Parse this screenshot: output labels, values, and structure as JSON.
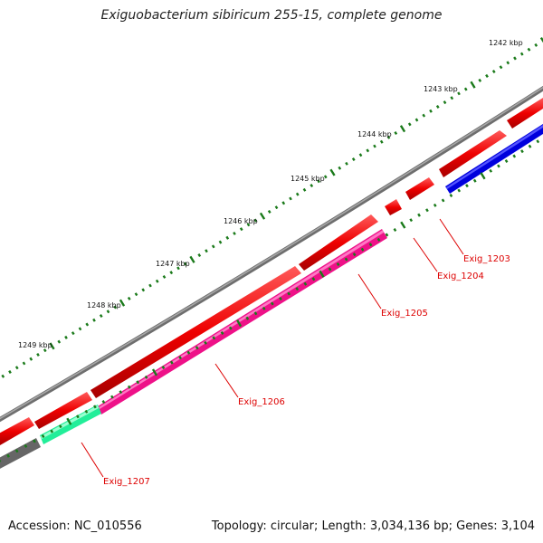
{
  "title": "Exiguobacterium sibiricum 255-15, complete genome",
  "footer": {
    "accession": "Accession: NC_010556",
    "summary": "Topology: circular; Length: 3,034,136 bp; Genes: 3,104"
  },
  "ruler": {
    "labels": [
      "1242 kbp",
      "1243 kbp",
      "1244 kbp",
      "1245 kbp",
      "1246 kbp",
      "1247 kbp",
      "1248 kbp",
      "1249 kbp"
    ]
  },
  "genes": [
    {
      "name": "Exig_1203",
      "color": "#dd0000"
    },
    {
      "name": "Exig_1204",
      "color": "#dd0000"
    },
    {
      "name": "Exig_1205",
      "color": "#dd0000"
    },
    {
      "name": "Exig_1206",
      "color": "#dd0000"
    },
    {
      "name": "Exig_1207",
      "color": "#dd0000"
    }
  ],
  "colors": {
    "backbone": "#808080",
    "forward_cds": "#ee0000",
    "reverse_cds_blue": "#0000dd",
    "reverse_cds_magenta": "#ee1188",
    "reverse_cds_green": "#22ee99",
    "reverse_cds_gray": "#666666",
    "ticks": "#1a7a1a",
    "label": "#dd0000"
  }
}
